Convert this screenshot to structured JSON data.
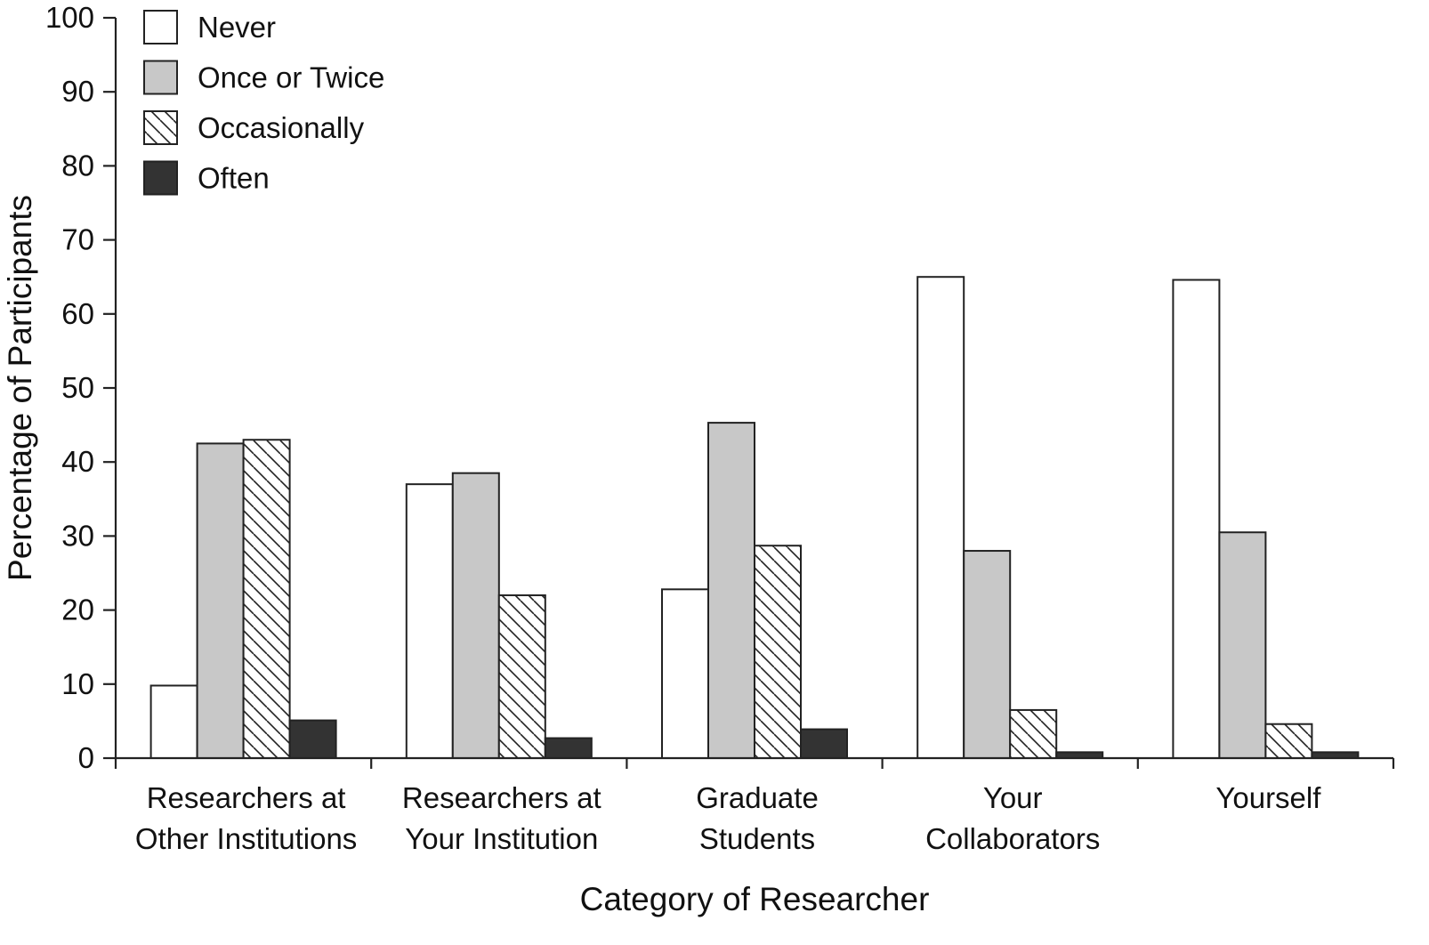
{
  "chart_data": {
    "type": "bar",
    "xlabel": "Category of Researcher",
    "ylabel": "Percentage of Participants",
    "ylim": [
      0,
      100
    ],
    "yticks": [
      0,
      10,
      20,
      30,
      40,
      50,
      60,
      70,
      80,
      90,
      100
    ],
    "categories": [
      [
        "Researchers at",
        "Other Institutions"
      ],
      [
        "Researchers at",
        "Your Institution"
      ],
      [
        "Graduate",
        "Students"
      ],
      [
        "Your",
        "Collaborators"
      ],
      [
        "Yourself"
      ]
    ],
    "series": [
      {
        "name": "Never",
        "fill": "#ffffff",
        "pattern": "none",
        "values": [
          9.8,
          37.0,
          22.8,
          65.0,
          64.6
        ]
      },
      {
        "name": "Once or Twice",
        "fill": "#c8c8c8",
        "pattern": "none",
        "values": [
          42.5,
          38.5,
          45.3,
          28.0,
          30.5
        ]
      },
      {
        "name": "Occasionally",
        "fill": "#ffffff",
        "pattern": "diagonal-hatch",
        "values": [
          43.0,
          22.0,
          28.7,
          6.5,
          4.6
        ]
      },
      {
        "name": "Often",
        "fill": "#333333",
        "pattern": "none",
        "values": [
          5.1,
          2.7,
          3.9,
          0.8,
          0.8
        ]
      }
    ],
    "legend_position": "top-left",
    "grid": false
  }
}
